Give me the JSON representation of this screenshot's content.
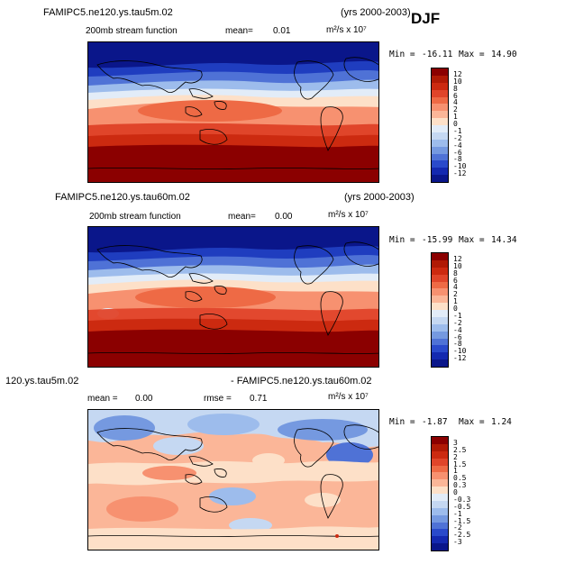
{
  "season": "DJF",
  "panels": [
    {
      "case": "FAMIPC5.ne120.ys.tau5m.02",
      "years": "(yrs 2000-2003)",
      "field": "200mb stream function",
      "mean_label": "mean=",
      "mean_value": "0.01",
      "units": "m²/s x 10⁷",
      "min_label": "Min =",
      "min_value": "-16.11",
      "max_label": "Max =",
      "max_value": "14.90",
      "colorbar_labels": [
        "12",
        "10",
        "8",
        "6",
        "4",
        "2",
        "1",
        "0",
        "-1",
        "-2",
        "-4",
        "-6",
        "-8",
        "-10",
        "-12"
      ]
    },
    {
      "case": "FAMIPC5.ne120.ys.tau60m.02",
      "years": "(yrs 2000-2003)",
      "field": "200mb stream function",
      "mean_label": "mean=",
      "mean_value": "0.00",
      "units": "m²/s x 10⁷",
      "min_label": "Min =",
      "min_value": "-15.99",
      "max_label": "Max =",
      "max_value": "14.34",
      "colorbar_labels": [
        "12",
        "10",
        "8",
        "6",
        "4",
        "2",
        "1",
        "0",
        "-1",
        "-2",
        "-4",
        "-6",
        "-8",
        "-10",
        "-12"
      ]
    },
    {
      "case_left": "120.ys.tau5m.02",
      "case_right": "- FAMIPC5.ne120.ys.tau60m.02",
      "mean_label": "mean =",
      "mean_value": "0.00",
      "rmse_label": "rmse =",
      "rmse_value": "0.71",
      "units": "m²/s x 10⁷",
      "min_label": "Min =",
      "min_value": "-1.87",
      "max_label": "Max =",
      "max_value": "1.24",
      "colorbar_labels": [
        "3",
        "2.5",
        "2",
        "1.5",
        "1",
        "0.5",
        "0.3",
        "0",
        "-0.3",
        "-0.5",
        "-1",
        "-1.5",
        "-2",
        "-2.5",
        "-3"
      ]
    }
  ],
  "colors": {
    "scale": [
      "#8b0000",
      "#b01a05",
      "#cc2a10",
      "#e0452a",
      "#ee6a45",
      "#f79170",
      "#fbb698",
      "#fde0c8",
      "#e2ecf8",
      "#c5d8f2",
      "#9dbcec",
      "#7599e0",
      "#4f72d6",
      "#2a4acb",
      "#1429b0",
      "#0a168a"
    ]
  }
}
